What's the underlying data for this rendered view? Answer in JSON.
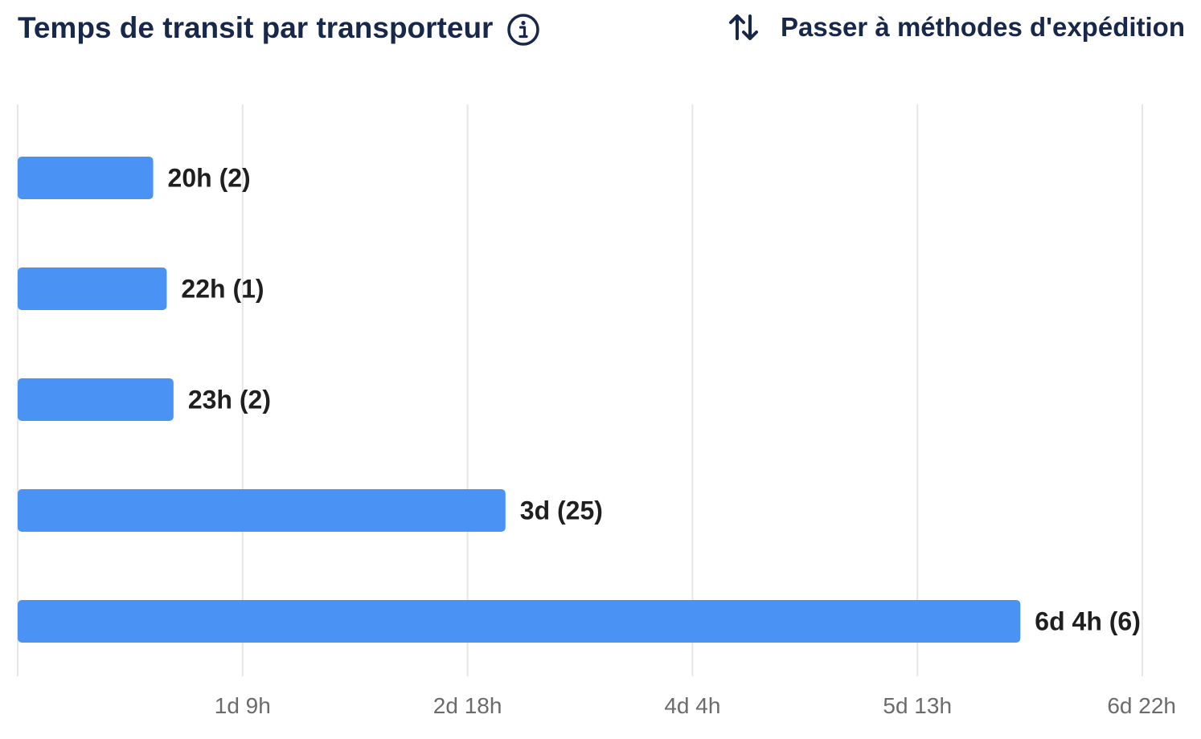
{
  "header": {
    "title": "Temps de transit par transporteur",
    "info_icon": "info-circle-icon",
    "switch_icon": "sort-arrows-icon",
    "switch_label": "Passer à méthodes d'expédition"
  },
  "colors": {
    "bar": "#4a93f5",
    "grid": "#e6e6e6",
    "text_dark": "#18284a"
  },
  "chart_data": {
    "type": "bar",
    "orientation": "horizontal",
    "title": "Temps de transit par transporteur",
    "xlabel": "",
    "ylabel": "",
    "unit": "hours",
    "xlim": [
      0,
      166
    ],
    "grid": true,
    "ticks": [
      {
        "value": 33.2,
        "label": "1d 9h"
      },
      {
        "value": 66.4,
        "label": "2d 18h"
      },
      {
        "value": 99.6,
        "label": "4d 4h"
      },
      {
        "value": 132.8,
        "label": "5d 13h"
      },
      {
        "value": 166,
        "label": "6d 22h"
      }
    ],
    "bars": [
      {
        "value": 20,
        "label": "20h (2)"
      },
      {
        "value": 22,
        "label": "22h (1)"
      },
      {
        "value": 23,
        "label": "23h (2)"
      },
      {
        "value": 72,
        "label": "3d (25)"
      },
      {
        "value": 148,
        "label": "6d 4h (6)"
      }
    ]
  }
}
